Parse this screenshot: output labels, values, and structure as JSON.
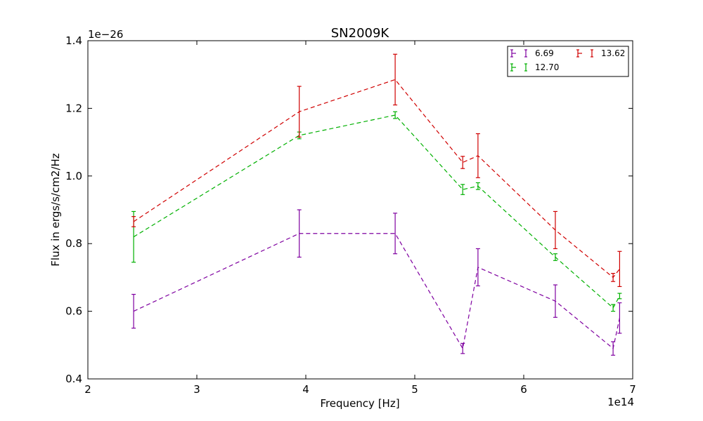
{
  "chart_data": {
    "type": "line",
    "title": "SN2009K",
    "xlabel": "Frequency [Hz]",
    "ylabel": "Flux in ergs/s/cm2/Hz",
    "x_offset_label": "1e14",
    "y_offset_label": "1e−26",
    "xlim": [
      2,
      7
    ],
    "ylim": [
      0.4,
      1.4
    ],
    "xticks": [
      2,
      3,
      4,
      5,
      6,
      7
    ],
    "xtick_labels": [
      "2",
      "3",
      "4",
      "5",
      "6",
      "7"
    ],
    "yticks": [
      0.4,
      0.6,
      0.8,
      1.0,
      1.2,
      1.4
    ],
    "ytick_labels": [
      "0.4",
      "0.6",
      "0.8",
      "1.0",
      "1.2",
      "1.4"
    ],
    "line_style": "dashed",
    "grid": false,
    "legend_position": "top-right",
    "x": [
      2.42,
      3.94,
      4.82,
      5.44,
      5.58,
      6.29,
      6.82,
      6.88
    ],
    "series": [
      {
        "name": "6.69",
        "color": "#7f00a0",
        "values": [
          0.6,
          0.83,
          0.83,
          0.49,
          0.73,
          0.63,
          0.49,
          0.58
        ],
        "errors": [
          0.05,
          0.07,
          0.06,
          0.015,
          0.055,
          0.048,
          0.02,
          0.045
        ]
      },
      {
        "name": "12.70",
        "color": "#00b000",
        "values": [
          0.82,
          1.12,
          1.18,
          0.96,
          0.97,
          0.76,
          0.61,
          0.645
        ],
        "errors": [
          0.075,
          0.01,
          0.01,
          0.015,
          0.01,
          0.01,
          0.01,
          0.008
        ]
      },
      {
        "name": "13.62",
        "color": "#d00000",
        "values": [
          0.865,
          1.19,
          1.285,
          1.04,
          1.06,
          0.84,
          0.7,
          0.725
        ],
        "errors": [
          0.015,
          0.075,
          0.075,
          0.018,
          0.065,
          0.055,
          0.012,
          0.052
        ]
      }
    ]
  }
}
